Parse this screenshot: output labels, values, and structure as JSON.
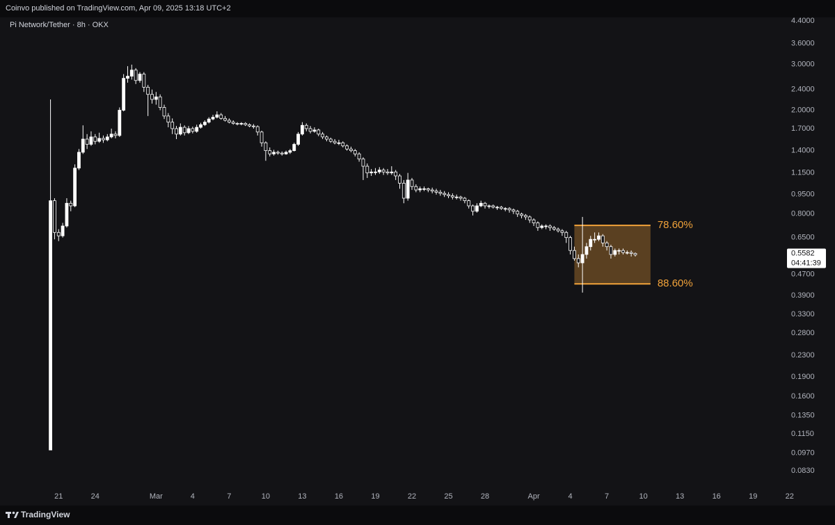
{
  "header": "Coinvo published on TradingView.com, Apr 09, 2025 13:18 UTC+2",
  "footer": "TradingView",
  "chart_data": {
    "type": "candlestick",
    "title": "Pi Network/Tether · 8h · OKX",
    "log_y": true,
    "up_color": "#ffffff",
    "down_color": "#ffffff",
    "countdown": "04:41:39",
    "xlim": [
      "2025-02-16 04:30",
      "2025-04-21 17:30"
    ],
    "ylim": [
      0.0721,
      4.537
    ],
    "yticks": [
      {
        "value": 4.4,
        "label": "4.4000"
      },
      {
        "value": 3.6,
        "label": "3.6000"
      },
      {
        "value": 3.0,
        "label": "3.0000"
      },
      {
        "value": 2.4,
        "label": "2.4000"
      },
      {
        "value": 2.0,
        "label": "2.0000"
      },
      {
        "value": 1.7,
        "label": "1.7000"
      },
      {
        "value": 1.4,
        "label": "1.4000"
      },
      {
        "value": 1.15,
        "label": "1.1500"
      },
      {
        "value": 0.95,
        "label": "0.9500"
      },
      {
        "value": 0.8,
        "label": "0.8000"
      },
      {
        "value": 0.65,
        "label": "0.6500"
      },
      {
        "value": 0.47,
        "label": "0.4700"
      },
      {
        "value": 0.39,
        "label": "0.3900"
      },
      {
        "value": 0.33,
        "label": "0.3300"
      },
      {
        "value": 0.28,
        "label": "0.2800"
      },
      {
        "value": 0.23,
        "label": "0.2300"
      },
      {
        "value": 0.19,
        "label": "0.1900"
      },
      {
        "value": 0.16,
        "label": "0.1600"
      },
      {
        "value": 0.135,
        "label": "0.1350"
      },
      {
        "value": 0.115,
        "label": "0.1150"
      },
      {
        "value": 0.097,
        "label": "0.0970"
      },
      {
        "value": 0.083,
        "label": "0.0830"
      }
    ],
    "xticks": [
      {
        "value": "2025-02-21",
        "label": "21"
      },
      {
        "value": "2025-02-24",
        "label": "24"
      },
      {
        "value": "2025-03-01",
        "label": "Mar"
      },
      {
        "value": "2025-03-04",
        "label": "4"
      },
      {
        "value": "2025-03-07",
        "label": "7"
      },
      {
        "value": "2025-03-10",
        "label": "10"
      },
      {
        "value": "2025-03-13",
        "label": "13"
      },
      {
        "value": "2025-03-16",
        "label": "16"
      },
      {
        "value": "2025-03-19",
        "label": "19"
      },
      {
        "value": "2025-03-22",
        "label": "22"
      },
      {
        "value": "2025-03-25",
        "label": "25"
      },
      {
        "value": "2025-03-28",
        "label": "28"
      },
      {
        "value": "2025-04-01",
        "label": "Apr"
      },
      {
        "value": "2025-04-04",
        "label": "4"
      },
      {
        "value": "2025-04-07",
        "label": "7"
      },
      {
        "value": "2025-04-10",
        "label": "10"
      },
      {
        "value": "2025-04-13",
        "label": "13"
      },
      {
        "value": "2025-04-16",
        "label": "16"
      },
      {
        "value": "2025-04-19",
        "label": "19"
      },
      {
        "value": "2025-04-22",
        "label": "22"
      }
    ],
    "fib_zone": {
      "x_start": "2025-04-04 08:00",
      "x_end": "2025-04-10 14:00",
      "color": "#f2a33a",
      "levels": [
        {
          "label": "78.60%",
          "price": 0.724
        },
        {
          "label": "88.60%",
          "price": 0.432
        }
      ]
    },
    "x": [
      "2025-02-20 08:00",
      "2025-02-20 16:00",
      "2025-02-21 00:00",
      "2025-02-21 08:00",
      "2025-02-21 16:00",
      "2025-02-22 00:00",
      "2025-02-22 08:00",
      "2025-02-22 16:00",
      "2025-02-23 00:00",
      "2025-02-23 08:00",
      "2025-02-23 16:00",
      "2025-02-24 00:00",
      "2025-02-24 08:00",
      "2025-02-24 16:00",
      "2025-02-25 00:00",
      "2025-02-25 08:00",
      "2025-02-25 16:00",
      "2025-02-26 00:00",
      "2025-02-26 08:00",
      "2025-02-26 16:00",
      "2025-02-27 00:00",
      "2025-02-27 08:00",
      "2025-02-27 16:00",
      "2025-02-28 00:00",
      "2025-02-28 08:00",
      "2025-02-28 16:00",
      "2025-03-01 00:00",
      "2025-03-01 08:00",
      "2025-03-01 16:00",
      "2025-03-02 00:00",
      "2025-03-02 08:00",
      "2025-03-02 16:00",
      "2025-03-03 00:00",
      "2025-03-03 08:00",
      "2025-03-03 16:00",
      "2025-03-04 00:00",
      "2025-03-04 08:00",
      "2025-03-04 16:00",
      "2025-03-05 00:00",
      "2025-03-05 08:00",
      "2025-03-05 16:00",
      "2025-03-06 00:00",
      "2025-03-06 08:00",
      "2025-03-06 16:00",
      "2025-03-07 00:00",
      "2025-03-07 08:00",
      "2025-03-07 16:00",
      "2025-03-08 00:00",
      "2025-03-08 08:00",
      "2025-03-08 16:00",
      "2025-03-09 00:00",
      "2025-03-09 08:00",
      "2025-03-09 16:00",
      "2025-03-10 00:00",
      "2025-03-10 08:00",
      "2025-03-10 16:00",
      "2025-03-11 00:00",
      "2025-03-11 08:00",
      "2025-03-11 16:00",
      "2025-03-12 00:00",
      "2025-03-12 08:00",
      "2025-03-12 16:00",
      "2025-03-13 00:00",
      "2025-03-13 08:00",
      "2025-03-13 16:00",
      "2025-03-14 00:00",
      "2025-03-14 08:00",
      "2025-03-14 16:00",
      "2025-03-15 00:00",
      "2025-03-15 08:00",
      "2025-03-15 16:00",
      "2025-03-16 00:00",
      "2025-03-16 08:00",
      "2025-03-16 16:00",
      "2025-03-17 00:00",
      "2025-03-17 08:00",
      "2025-03-17 16:00",
      "2025-03-18 00:00",
      "2025-03-18 08:00",
      "2025-03-18 16:00",
      "2025-03-19 00:00",
      "2025-03-19 08:00",
      "2025-03-19 16:00",
      "2025-03-20 00:00",
      "2025-03-20 08:00",
      "2025-03-20 16:00",
      "2025-03-21 00:00",
      "2025-03-21 08:00",
      "2025-03-21 16:00",
      "2025-03-22 00:00",
      "2025-03-22 08:00",
      "2025-03-22 16:00",
      "2025-03-23 00:00",
      "2025-03-23 08:00",
      "2025-03-23 16:00",
      "2025-03-24 00:00",
      "2025-03-24 08:00",
      "2025-03-24 16:00",
      "2025-03-25 00:00",
      "2025-03-25 08:00",
      "2025-03-25 16:00",
      "2025-03-26 00:00",
      "2025-03-26 08:00",
      "2025-03-26 16:00",
      "2025-03-27 00:00",
      "2025-03-27 08:00",
      "2025-03-27 16:00",
      "2025-03-28 00:00",
      "2025-03-28 08:00",
      "2025-03-28 16:00",
      "2025-03-29 00:00",
      "2025-03-29 08:00",
      "2025-03-29 16:00",
      "2025-03-30 00:00",
      "2025-03-30 08:00",
      "2025-03-30 16:00",
      "2025-03-31 00:00",
      "2025-03-31 08:00",
      "2025-03-31 16:00",
      "2025-04-01 00:00",
      "2025-04-01 08:00",
      "2025-04-01 16:00",
      "2025-04-02 00:00",
      "2025-04-02 08:00",
      "2025-04-02 16:00",
      "2025-04-03 00:00",
      "2025-04-03 08:00",
      "2025-04-03 16:00",
      "2025-04-04 00:00",
      "2025-04-04 08:00",
      "2025-04-04 16:00",
      "2025-04-05 00:00",
      "2025-04-05 08:00",
      "2025-04-05 16:00",
      "2025-04-06 00:00",
      "2025-04-06 08:00",
      "2025-04-06 16:00",
      "2025-04-07 00:00",
      "2025-04-07 08:00",
      "2025-04-07 16:00",
      "2025-04-08 00:00",
      "2025-04-08 08:00",
      "2025-04-08 16:00",
      "2025-04-09 00:00",
      "2025-04-09 08:00"
    ],
    "open": [
      0.0997,
      0.9,
      0.68,
      0.66,
      0.72,
      0.88,
      0.86,
      1.2,
      1.38,
      1.55,
      1.48,
      1.58,
      1.52,
      1.56,
      1.54,
      1.58,
      1.62,
      1.6,
      2.0,
      2.65,
      2.7,
      2.85,
      2.6,
      2.75,
      2.45,
      2.3,
      2.2,
      2.25,
      2.05,
      1.9,
      1.8,
      1.7,
      1.62,
      1.72,
      1.64,
      1.7,
      1.66,
      1.72,
      1.76,
      1.8,
      1.85,
      1.88,
      1.92,
      1.86,
      1.83,
      1.8,
      1.78,
      1.77,
      1.78,
      1.76,
      1.74,
      1.73,
      1.65,
      1.5,
      1.4,
      1.36,
      1.38,
      1.37,
      1.36,
      1.38,
      1.4,
      1.48,
      1.62,
      1.75,
      1.7,
      1.66,
      1.68,
      1.62,
      1.58,
      1.55,
      1.52,
      1.5,
      1.5,
      1.46,
      1.42,
      1.4,
      1.36,
      1.3,
      1.22,
      1.15,
      1.16,
      1.16,
      1.18,
      1.16,
      1.15,
      1.16,
      1.12,
      1.05,
      0.92,
      1.08,
      1.02,
      0.99,
      1.0,
      1.0,
      0.99,
      0.98,
      0.97,
      0.96,
      0.95,
      0.94,
      0.93,
      0.93,
      0.92,
      0.9,
      0.86,
      0.82,
      0.86,
      0.88,
      0.86,
      0.86,
      0.85,
      0.85,
      0.84,
      0.84,
      0.83,
      0.82,
      0.8,
      0.79,
      0.78,
      0.76,
      0.74,
      0.71,
      0.72,
      0.72,
      0.71,
      0.7,
      0.69,
      0.68,
      0.65,
      0.58,
      0.54,
      0.52,
      0.56,
      0.6,
      0.64,
      0.64,
      0.66,
      0.62,
      0.6,
      0.56,
      0.58,
      0.58,
      0.57,
      0.57,
      0.565
    ],
    "high": [
      2.2,
      0.92,
      0.7,
      0.74,
      0.92,
      0.9,
      1.24,
      1.42,
      1.75,
      1.62,
      1.66,
      1.62,
      1.64,
      1.6,
      1.62,
      1.7,
      1.66,
      2.05,
      2.75,
      2.95,
      2.99,
      2.9,
      2.8,
      2.8,
      2.5,
      2.4,
      2.35,
      2.3,
      2.1,
      1.95,
      1.86,
      1.74,
      1.78,
      1.75,
      1.74,
      1.73,
      1.76,
      1.79,
      1.83,
      1.88,
      1.92,
      1.98,
      1.95,
      1.9,
      1.86,
      1.83,
      1.8,
      1.8,
      1.8,
      1.78,
      1.77,
      1.75,
      1.67,
      1.52,
      1.44,
      1.41,
      1.4,
      1.39,
      1.4,
      1.42,
      1.5,
      1.65,
      1.8,
      1.78,
      1.74,
      1.72,
      1.7,
      1.65,
      1.6,
      1.57,
      1.55,
      1.54,
      1.52,
      1.48,
      1.45,
      1.42,
      1.38,
      1.32,
      1.25,
      1.19,
      1.2,
      1.21,
      1.2,
      1.19,
      1.22,
      1.18,
      1.14,
      1.08,
      1.15,
      1.1,
      1.04,
      1.02,
      1.02,
      1.01,
      1.01,
      1.0,
      0.99,
      0.98,
      0.97,
      0.96,
      0.95,
      0.94,
      0.93,
      0.91,
      0.87,
      0.88,
      0.9,
      0.89,
      0.87,
      0.87,
      0.86,
      0.86,
      0.85,
      0.85,
      0.84,
      0.83,
      0.81,
      0.8,
      0.79,
      0.77,
      0.75,
      0.73,
      0.73,
      0.73,
      0.72,
      0.71,
      0.7,
      0.69,
      0.66,
      0.6,
      0.56,
      0.78,
      0.62,
      0.66,
      0.68,
      0.68,
      0.67,
      0.63,
      0.61,
      0.59,
      0.59,
      0.59,
      0.58,
      0.58,
      0.57
    ],
    "low": [
      0.0997,
      0.64,
      0.63,
      0.65,
      0.71,
      0.82,
      0.85,
      1.18,
      1.36,
      1.42,
      1.46,
      1.48,
      1.5,
      1.5,
      1.52,
      1.56,
      1.56,
      1.58,
      1.98,
      2.55,
      2.62,
      2.52,
      2.55,
      2.35,
      1.9,
      2.12,
      2.1,
      2.0,
      1.85,
      1.72,
      1.62,
      1.55,
      1.6,
      1.6,
      1.62,
      1.63,
      1.64,
      1.7,
      1.74,
      1.78,
      1.83,
      1.86,
      1.84,
      1.81,
      1.78,
      1.76,
      1.75,
      1.75,
      1.74,
      1.72,
      1.7,
      1.6,
      1.45,
      1.28,
      1.33,
      1.34,
      1.35,
      1.34,
      1.35,
      1.36,
      1.39,
      1.46,
      1.6,
      1.66,
      1.63,
      1.64,
      1.59,
      1.55,
      1.52,
      1.5,
      1.48,
      1.47,
      1.44,
      1.4,
      1.38,
      1.33,
      1.27,
      1.08,
      1.1,
      1.12,
      1.13,
      1.14,
      1.13,
      1.13,
      1.13,
      1.08,
      1.0,
      0.88,
      0.9,
      0.99,
      0.97,
      0.97,
      0.98,
      0.97,
      0.96,
      0.95,
      0.94,
      0.93,
      0.92,
      0.91,
      0.91,
      0.9,
      0.88,
      0.84,
      0.79,
      0.81,
      0.85,
      0.84,
      0.84,
      0.84,
      0.83,
      0.83,
      0.82,
      0.81,
      0.8,
      0.78,
      0.77,
      0.76,
      0.74,
      0.72,
      0.69,
      0.7,
      0.7,
      0.69,
      0.69,
      0.68,
      0.66,
      0.62,
      0.56,
      0.53,
      0.5,
      0.4,
      0.54,
      0.58,
      0.62,
      0.63,
      0.6,
      0.58,
      0.54,
      0.55,
      0.56,
      0.56,
      0.56,
      0.55,
      0.55
    ],
    "close": [
      0.9,
      0.68,
      0.66,
      0.72,
      0.88,
      0.86,
      1.2,
      1.38,
      1.55,
      1.48,
      1.58,
      1.52,
      1.56,
      1.54,
      1.58,
      1.62,
      1.6,
      2.0,
      2.65,
      2.7,
      2.85,
      2.6,
      2.75,
      2.45,
      2.3,
      2.2,
      2.25,
      2.05,
      1.9,
      1.8,
      1.7,
      1.62,
      1.72,
      1.64,
      1.7,
      1.66,
      1.72,
      1.76,
      1.8,
      1.85,
      1.88,
      1.92,
      1.86,
      1.83,
      1.8,
      1.78,
      1.77,
      1.78,
      1.76,
      1.74,
      1.73,
      1.65,
      1.5,
      1.4,
      1.36,
      1.38,
      1.37,
      1.36,
      1.38,
      1.4,
      1.48,
      1.62,
      1.75,
      1.7,
      1.66,
      1.68,
      1.62,
      1.58,
      1.55,
      1.52,
      1.5,
      1.5,
      1.46,
      1.42,
      1.4,
      1.36,
      1.3,
      1.22,
      1.15,
      1.16,
      1.16,
      1.18,
      1.16,
      1.15,
      1.16,
      1.12,
      1.05,
      0.92,
      1.08,
      1.02,
      0.99,
      1.0,
      1.0,
      0.99,
      0.98,
      0.97,
      0.96,
      0.95,
      0.94,
      0.93,
      0.93,
      0.92,
      0.9,
      0.86,
      0.82,
      0.86,
      0.88,
      0.86,
      0.86,
      0.85,
      0.85,
      0.84,
      0.84,
      0.83,
      0.82,
      0.8,
      0.79,
      0.78,
      0.76,
      0.74,
      0.71,
      0.72,
      0.72,
      0.71,
      0.7,
      0.69,
      0.68,
      0.65,
      0.58,
      0.54,
      0.52,
      0.56,
      0.6,
      0.64,
      0.64,
      0.66,
      0.62,
      0.6,
      0.56,
      0.58,
      0.58,
      0.57,
      0.57,
      0.565,
      0.5582
    ]
  }
}
